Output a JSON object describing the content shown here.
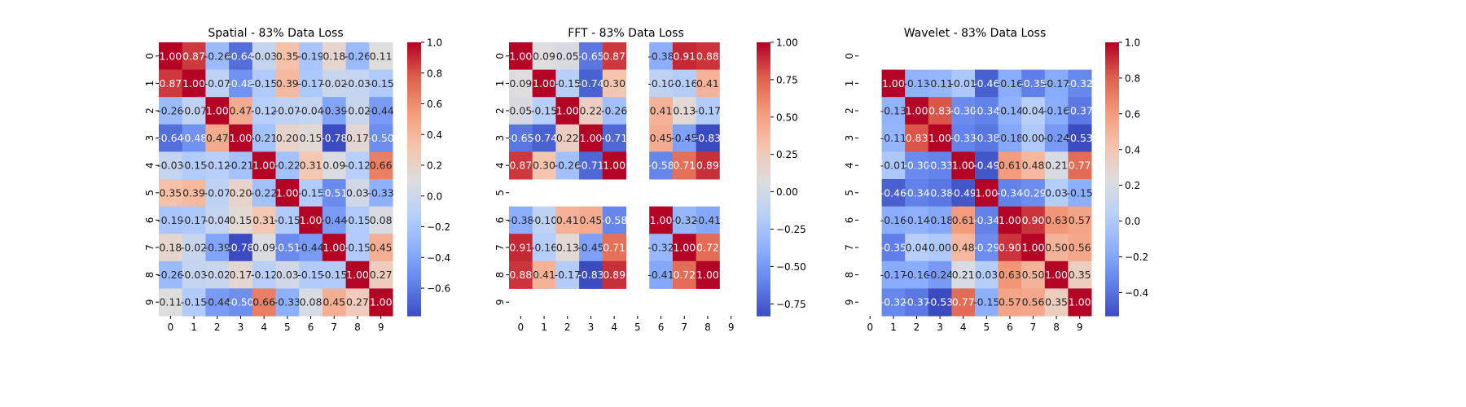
{
  "chart_data": [
    {
      "type": "heatmap",
      "title": "Spatial - 83% Data Loss",
      "xlabel": "",
      "ylabel": "",
      "x_ticks": [
        "0",
        "1",
        "2",
        "3",
        "4",
        "5",
        "6",
        "7",
        "8",
        "9"
      ],
      "y_ticks": [
        "0",
        "1",
        "2",
        "3",
        "4",
        "5",
        "6",
        "7",
        "8",
        "9"
      ],
      "colormap": "coolwarm",
      "vmin": -0.78,
      "vmax": 1.0,
      "colorbar_ticks": [
        1.0,
        0.8,
        0.6,
        0.4,
        0.2,
        0.0,
        -0.2,
        -0.4,
        -0.6
      ],
      "colorbar_tick_labels": [
        "1.0",
        "0.8",
        "0.6",
        "0.4",
        "0.2",
        "0.0",
        "−0.2",
        "−0.4",
        "−0.6"
      ],
      "matrix": [
        [
          1.0,
          0.87,
          -0.26,
          -0.64,
          -0.03,
          0.35,
          -0.19,
          0.18,
          -0.26,
          0.11
        ],
        [
          0.87,
          1.0,
          -0.07,
          -0.48,
          -0.15,
          0.39,
          -0.17,
          -0.02,
          -0.03,
          -0.15
        ],
        [
          -0.26,
          -0.07,
          1.0,
          0.47,
          -0.12,
          -0.07,
          -0.04,
          -0.39,
          -0.02,
          -0.44
        ],
        [
          -0.64,
          -0.48,
          0.47,
          1.0,
          -0.21,
          0.2,
          0.15,
          -0.78,
          0.17,
          -0.5
        ],
        [
          -0.03,
          -0.15,
          -0.12,
          -0.21,
          1.0,
          -0.22,
          0.31,
          0.09,
          -0.12,
          0.66
        ],
        [
          0.35,
          0.39,
          -0.07,
          0.2,
          -0.22,
          1.0,
          -0.15,
          -0.51,
          0.03,
          -0.33
        ],
        [
          -0.19,
          -0.17,
          -0.04,
          0.15,
          0.31,
          -0.15,
          1.0,
          -0.44,
          -0.15,
          0.08
        ],
        [
          0.18,
          -0.02,
          -0.39,
          -0.78,
          0.09,
          -0.51,
          -0.44,
          1.0,
          -0.15,
          0.45
        ],
        [
          -0.26,
          -0.03,
          -0.02,
          0.17,
          -0.12,
          0.03,
          -0.15,
          -0.15,
          1.0,
          0.27
        ],
        [
          0.11,
          -0.15,
          -0.44,
          -0.5,
          0.66,
          -0.33,
          0.08,
          0.45,
          0.27,
          1.0
        ]
      ]
    },
    {
      "type": "heatmap",
      "title": "FFT - 83% Data Loss",
      "xlabel": "",
      "ylabel": "",
      "x_ticks": [
        "0",
        "1",
        "2",
        "3",
        "4",
        "5",
        "6",
        "7",
        "8",
        "9"
      ],
      "y_ticks": [
        "0",
        "1",
        "2",
        "3",
        "4",
        "5",
        "6",
        "7",
        "8",
        "9"
      ],
      "colormap": "coolwarm",
      "vmin": -0.83,
      "vmax": 1.0,
      "colorbar_ticks": [
        1.0,
        0.75,
        0.5,
        0.25,
        0.0,
        -0.25,
        -0.5,
        -0.75
      ],
      "colorbar_tick_labels": [
        "1.00",
        "0.75",
        "0.50",
        "0.25",
        "0.00",
        "−0.25",
        "−0.50",
        "−0.75"
      ],
      "matrix": [
        [
          1.0,
          0.09,
          0.05,
          -0.65,
          0.87,
          null,
          -0.38,
          0.91,
          0.88,
          null
        ],
        [
          0.09,
          1.0,
          -0.15,
          -0.74,
          0.3,
          null,
          -0.1,
          -0.16,
          0.41,
          null
        ],
        [
          0.05,
          -0.15,
          1.0,
          0.22,
          -0.26,
          null,
          0.41,
          0.13,
          -0.17,
          null
        ],
        [
          -0.65,
          -0.74,
          0.22,
          1.0,
          -0.71,
          null,
          0.45,
          -0.45,
          -0.83,
          null
        ],
        [
          0.87,
          0.3,
          -0.26,
          -0.71,
          1.0,
          null,
          -0.58,
          0.71,
          0.89,
          null
        ],
        [
          null,
          null,
          null,
          null,
          null,
          null,
          null,
          null,
          null,
          null
        ],
        [
          -0.38,
          -0.1,
          0.41,
          0.45,
          -0.58,
          null,
          1.0,
          -0.32,
          -0.41,
          null
        ],
        [
          0.91,
          -0.16,
          0.13,
          -0.45,
          0.71,
          null,
          -0.32,
          1.0,
          0.72,
          null
        ],
        [
          0.88,
          0.41,
          -0.17,
          -0.83,
          0.89,
          null,
          -0.41,
          0.72,
          1.0,
          null
        ],
        [
          null,
          null,
          null,
          null,
          null,
          null,
          null,
          null,
          null,
          null
        ]
      ]
    },
    {
      "type": "heatmap",
      "title": "Wavelet - 83% Data Loss",
      "xlabel": "",
      "ylabel": "",
      "x_ticks": [
        "0",
        "1",
        "2",
        "3",
        "4",
        "5",
        "6",
        "7",
        "8",
        "9"
      ],
      "y_ticks": [
        "0",
        "1",
        "2",
        "3",
        "4",
        "5",
        "6",
        "7",
        "8",
        "9"
      ],
      "colormap": "coolwarm",
      "vmin": -0.53,
      "vmax": 1.0,
      "colorbar_ticks": [
        1.0,
        0.8,
        0.6,
        0.4,
        0.2,
        0.0,
        -0.2,
        -0.4
      ],
      "colorbar_tick_labels": [
        "1.0",
        "0.8",
        "0.6",
        "0.4",
        "0.2",
        "0.0",
        "−0.2",
        "−0.4"
      ],
      "matrix": [
        [
          null,
          null,
          null,
          null,
          null,
          null,
          null,
          null,
          null,
          null
        ],
        [
          null,
          1.0,
          -0.13,
          -0.11,
          -0.01,
          -0.46,
          -0.16,
          -0.35,
          -0.17,
          -0.32
        ],
        [
          null,
          -0.13,
          1.0,
          0.83,
          -0.3,
          -0.34,
          -0.14,
          0.04,
          -0.16,
          -0.37
        ],
        [
          null,
          -0.11,
          0.83,
          1.0,
          -0.33,
          -0.38,
          -0.18,
          0.0,
          -0.24,
          -0.53
        ],
        [
          null,
          -0.01,
          -0.3,
          -0.33,
          1.0,
          -0.49,
          0.61,
          0.48,
          0.21,
          0.77
        ],
        [
          null,
          -0.46,
          -0.34,
          -0.38,
          -0.49,
          1.0,
          -0.34,
          -0.29,
          0.03,
          -0.15
        ],
        [
          null,
          -0.16,
          -0.14,
          -0.18,
          0.61,
          -0.34,
          1.0,
          0.9,
          0.63,
          0.57
        ],
        [
          null,
          -0.35,
          0.04,
          0.0,
          0.48,
          -0.29,
          0.9,
          1.0,
          0.5,
          0.56
        ],
        [
          null,
          -0.17,
          -0.16,
          -0.24,
          0.21,
          0.03,
          0.63,
          0.5,
          1.0,
          0.35
        ],
        [
          null,
          -0.32,
          -0.37,
          -0.53,
          0.77,
          -0.15,
          0.57,
          0.56,
          0.35,
          1.0
        ]
      ]
    }
  ]
}
